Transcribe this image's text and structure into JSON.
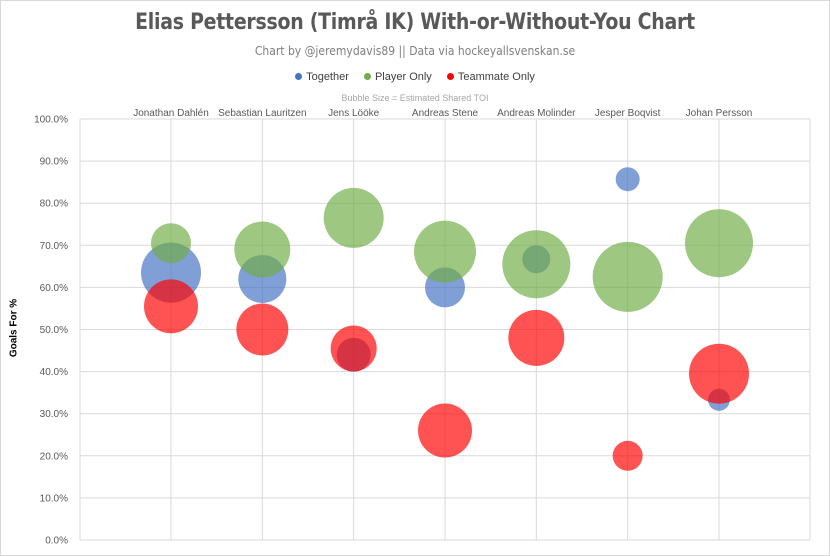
{
  "chart_data": {
    "type": "scatter",
    "title": "Elias Pettersson (Timrå IK) With-or-Without-You Chart",
    "subtitle": "Chart by @jeremydavis89 || Data via hockeyallsvenskan.se",
    "note": "Bubble Size = Estimated Shared TOI",
    "ylabel": "Goals For %",
    "ylim": [
      0,
      100
    ],
    "yticks": [
      "0.0%",
      "10.0%",
      "20.0%",
      "30.0%",
      "40.0%",
      "50.0%",
      "60.0%",
      "70.0%",
      "80.0%",
      "90.0%",
      "100.0%"
    ],
    "grid": true,
    "legend_position": "top",
    "categories": [
      "Jonathan Dahlén",
      "Sebastian Lauritzen",
      "Jens Lööke",
      "Andreas Stene",
      "Andreas Molinder",
      "Jesper Boqvist",
      "Johan Persson"
    ],
    "series": [
      {
        "name": "Together",
        "color": "#4472c4",
        "values": [
          63.5,
          62.0,
          44.0,
          60.0,
          66.7,
          85.7,
          33.3
        ],
        "bubble_sizes": [
          60,
          48,
          34,
          40,
          28,
          24,
          22
        ]
      },
      {
        "name": "Player Only",
        "color": "#70ad47",
        "values": [
          70.5,
          69.0,
          76.5,
          68.5,
          65.5,
          62.5,
          70.5
        ],
        "bubble_sizes": [
          40,
          56,
          60,
          62,
          68,
          70,
          68
        ]
      },
      {
        "name": "Teammate Only",
        "color": "#ff0000",
        "values": [
          55.5,
          50.0,
          45.5,
          26.0,
          48.0,
          20.0,
          39.5
        ],
        "bubble_sizes": [
          54,
          52,
          46,
          54,
          56,
          30,
          60
        ]
      }
    ]
  }
}
